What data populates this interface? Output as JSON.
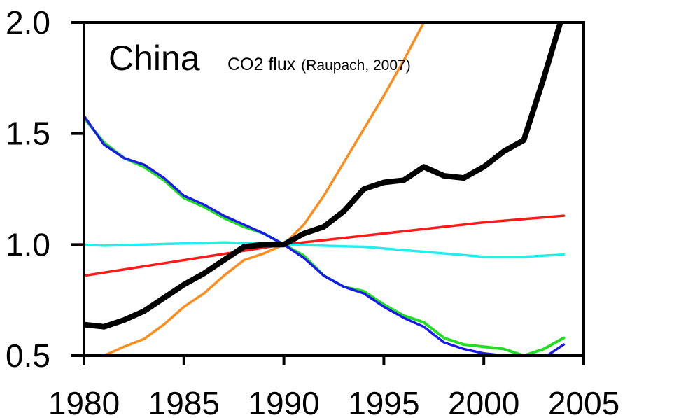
{
  "chart_data": {
    "type": "line",
    "title": "China",
    "subtitle": "CO2 flux",
    "subtitle_note": "(Raupach, 2007)",
    "xlabel": "",
    "ylabel": "",
    "xlim": [
      1980,
      2005
    ],
    "ylim": [
      0.5,
      2.0
    ],
    "xticks": [
      1980,
      1985,
      1990,
      1995,
      2000,
      2005
    ],
    "yticks": [
      0.5,
      1.0,
      1.5,
      2.0
    ],
    "ytick_labels": [
      "0.5",
      "1.0",
      "1.5",
      "2.0"
    ],
    "grid": false,
    "legend": "none",
    "series": [
      {
        "color": "#ff8c1a",
        "width": 3.5,
        "x": [
          1981,
          1982,
          1983,
          1984,
          1985,
          1986,
          1987,
          1988,
          1989,
          1990,
          1991,
          1992,
          1993,
          1994,
          1995,
          1996,
          1997
        ],
        "y": [
          0.5,
          0.54,
          0.575,
          0.64,
          0.72,
          0.78,
          0.86,
          0.93,
          0.96,
          1.0,
          1.09,
          1.22,
          1.37,
          1.52,
          1.67,
          1.83,
          2.0
        ]
      },
      {
        "color": "#ff1a1a",
        "width": 3.5,
        "x": [
          1980,
          1985,
          1990,
          1995,
          2000,
          2004
        ],
        "y": [
          0.86,
          0.93,
          1.0,
          1.05,
          1.1,
          1.13
        ]
      },
      {
        "color": "#22eeee",
        "width": 3.5,
        "x": [
          1980,
          1981,
          1983,
          1985,
          1987,
          1989,
          1990,
          1992,
          1994,
          1996,
          1998,
          2000,
          2002,
          2004
        ],
        "y": [
          1.0,
          0.995,
          1.0,
          1.005,
          1.01,
          1.005,
          1.0,
          0.995,
          0.99,
          0.975,
          0.96,
          0.945,
          0.945,
          0.955
        ]
      },
      {
        "color": "#22dd22",
        "width": 4,
        "x": [
          1980,
          1981,
          1982,
          1983,
          1984,
          1985,
          1986,
          1987,
          1988,
          1989,
          1990,
          1991,
          1992,
          1993,
          1994,
          1995,
          1996,
          1997,
          1998,
          1999,
          2000,
          2001,
          2002,
          2003,
          2004
        ],
        "y": [
          1.57,
          1.46,
          1.39,
          1.35,
          1.29,
          1.21,
          1.17,
          1.12,
          1.08,
          1.05,
          1.0,
          0.95,
          0.86,
          0.81,
          0.79,
          0.73,
          0.68,
          0.65,
          0.58,
          0.55,
          0.54,
          0.53,
          0.5,
          0.53,
          0.58
        ]
      },
      {
        "color": "#1a1aee",
        "width": 3.5,
        "x": [
          1980,
          1981,
          1982,
          1983,
          1984,
          1985,
          1986,
          1987,
          1988,
          1989,
          1990,
          1991,
          1992,
          1993,
          1994,
          1995,
          1996,
          1997,
          1998,
          1999,
          2000,
          2001,
          2002,
          2003,
          2004
        ],
        "y": [
          1.58,
          1.45,
          1.39,
          1.36,
          1.3,
          1.22,
          1.18,
          1.13,
          1.09,
          1.05,
          1.0,
          0.94,
          0.86,
          0.81,
          0.78,
          0.72,
          0.67,
          0.63,
          0.56,
          0.53,
          0.51,
          0.5,
          0.47,
          0.49,
          0.55
        ]
      },
      {
        "color": "#000000",
        "width": 8,
        "x": [
          1980,
          1981,
          1982,
          1983,
          1984,
          1985,
          1986,
          1987,
          1988,
          1989,
          1990,
          1991,
          1992,
          1993,
          1994,
          1995,
          1996,
          1997,
          1998,
          1999,
          2000,
          2001,
          2002,
          2003,
          2004
        ],
        "y": [
          0.64,
          0.63,
          0.66,
          0.7,
          0.76,
          0.82,
          0.87,
          0.93,
          0.99,
          1.0,
          1.0,
          1.05,
          1.08,
          1.15,
          1.25,
          1.28,
          1.29,
          1.35,
          1.31,
          1.3,
          1.35,
          1.42,
          1.47,
          1.75,
          2.05
        ]
      }
    ]
  }
}
